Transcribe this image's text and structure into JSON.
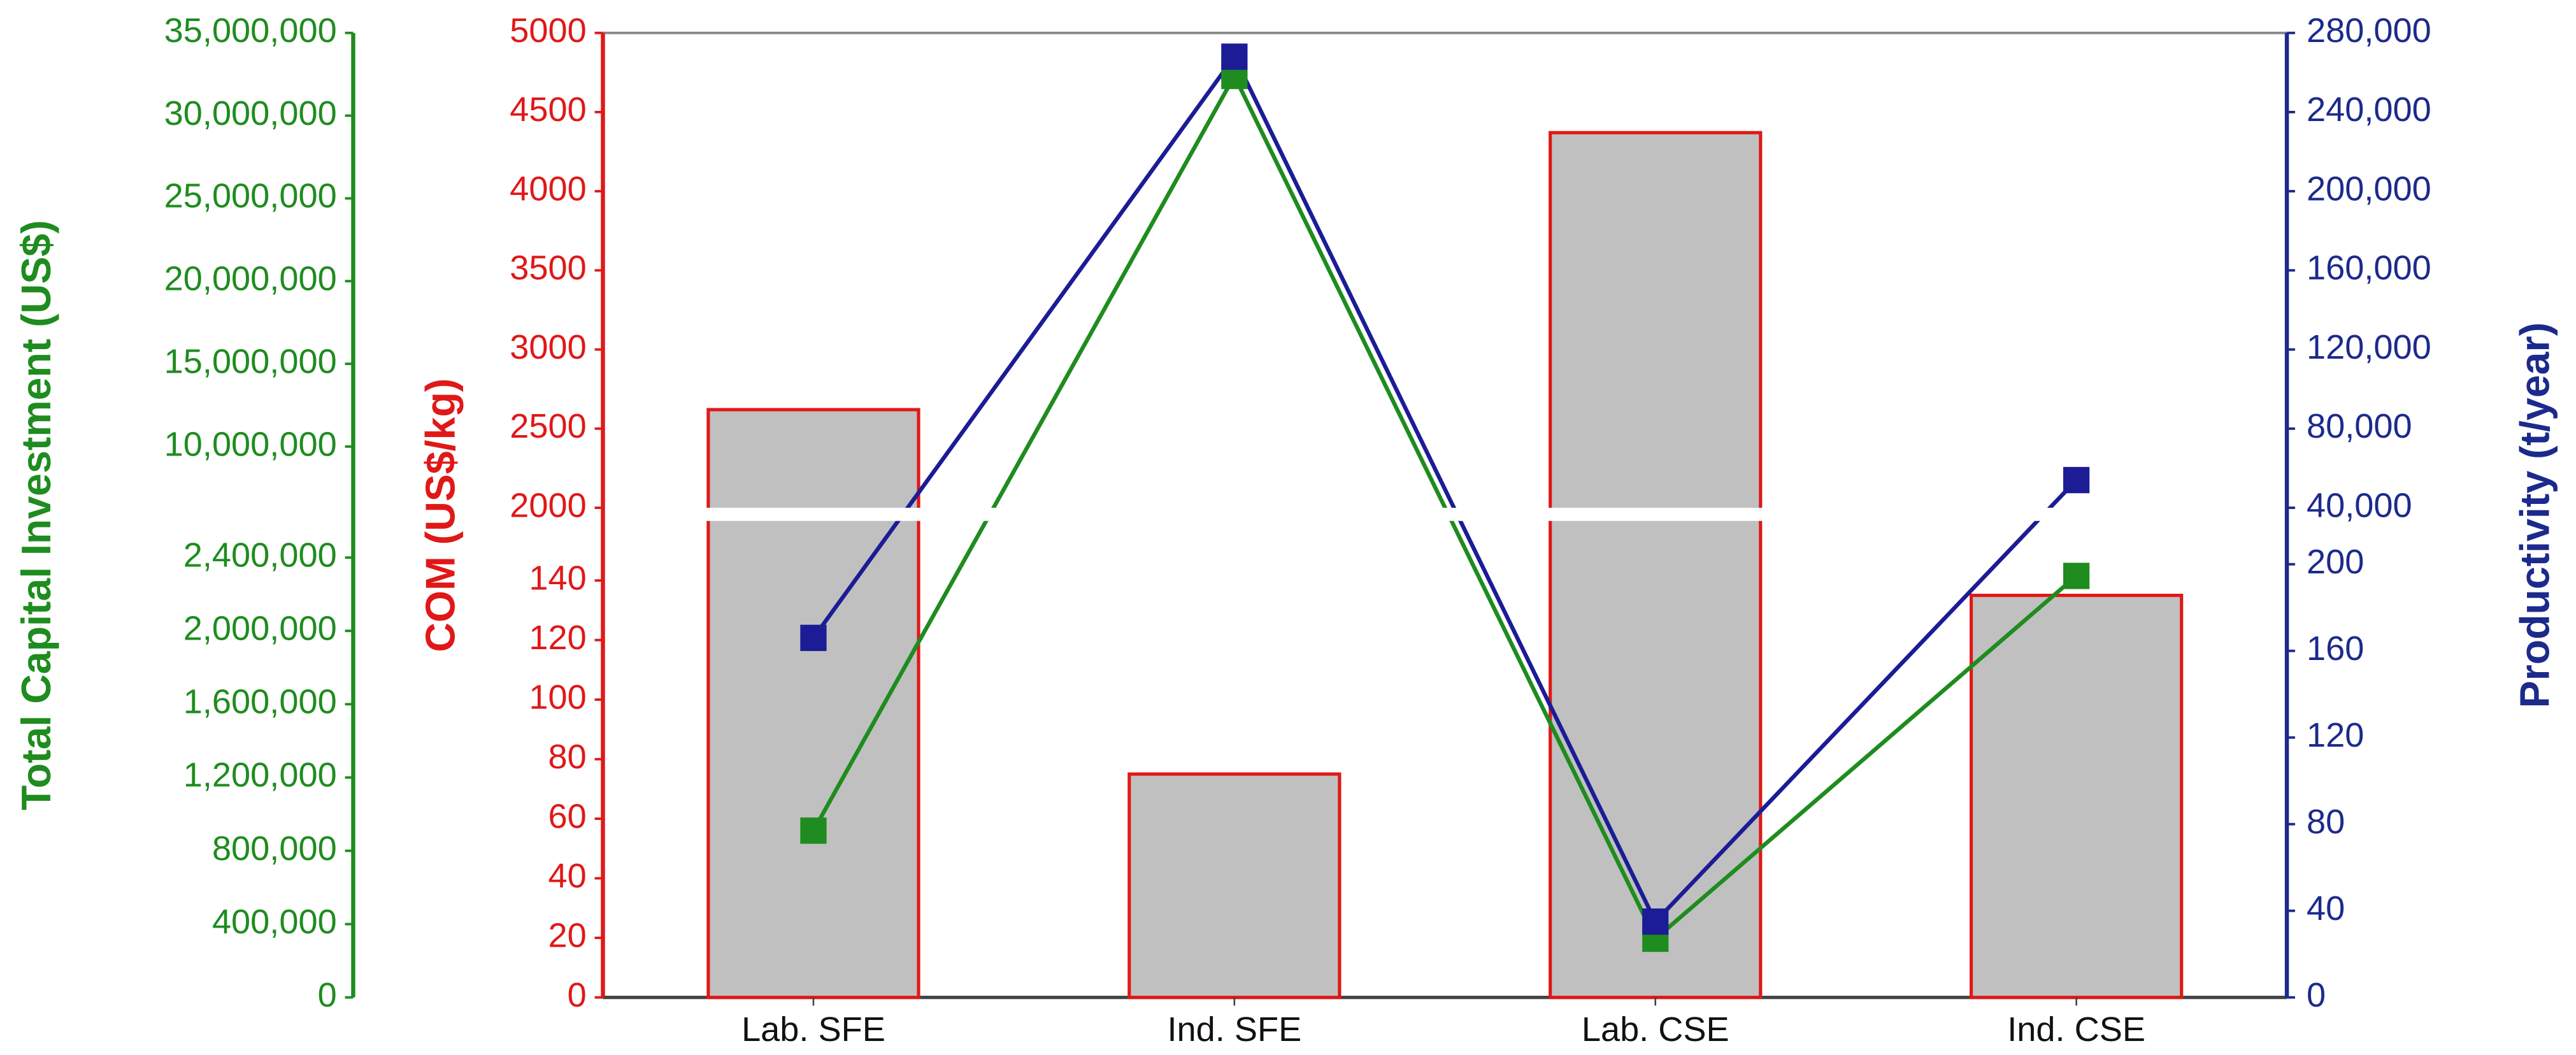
{
  "chart_data": {
    "type": "bar-line",
    "categories": [
      "Lab. SFE",
      "Ind. SFE",
      "Lab. CSE",
      "Ind. CSE"
    ],
    "y_axes": [
      {
        "label": "Total Capital Investment (US$)",
        "color": "#1e8c1e",
        "side": "far-left",
        "segments": [
          {
            "ylim": [
              0,
              2600000
            ],
            "yticks": [
              {
                "value": 0,
                "label": "0"
              },
              {
                "value": 400000,
                "label": "400,000"
              },
              {
                "value": 800000,
                "label": "800,000"
              },
              {
                "value": 1200000,
                "label": "1,200,000"
              },
              {
                "value": 1600000,
                "label": "1,600,000"
              },
              {
                "value": 2000000,
                "label": "2,000,000"
              },
              {
                "value": 2400000,
                "label": "2,400,000"
              }
            ]
          },
          {
            "ylim": [
              6300000,
              35000000
            ],
            "yticks": [
              {
                "value": 10000000,
                "label": "10,000,000"
              },
              {
                "value": 15000000,
                "label": "15,000,000"
              },
              {
                "value": 20000000,
                "label": "20,000,000"
              },
              {
                "value": 25000000,
                "label": "25,000,000"
              },
              {
                "value": 30000000,
                "label": "30,000,000"
              },
              {
                "value": 35000000,
                "label": "35,000,000"
              }
            ]
          }
        ]
      },
      {
        "label": "COM (US$/kg)",
        "color": "#e01818",
        "side": "left",
        "segments": [
          {
            "ylim": [
              0,
              160
            ],
            "yticks": [
              0,
              20,
              40,
              60,
              80,
              100,
              120,
              140
            ]
          },
          {
            "ylim": [
              2000,
              5000
            ],
            "yticks": [
              2000,
              2500,
              3000,
              3500,
              4000,
              4500,
              5000
            ]
          }
        ]
      },
      {
        "label": "Productivity (t/year)",
        "color": "#1c2a8c",
        "side": "right",
        "segments": [
          {
            "ylim": [
              0,
              220
            ],
            "yticks": [
              0,
              40,
              80,
              120,
              160,
              200
            ]
          },
          {
            "ylim": [
              40000,
              280000
            ],
            "yticks": [
              {
                "value": 40000,
                "label": "40,000"
              },
              {
                "value": 80000,
                "label": "80,000"
              },
              {
                "value": 120000,
                "label": "120,000"
              },
              {
                "value": 160000,
                "label": "160,000"
              },
              {
                "value": 200000,
                "label": "200,000"
              },
              {
                "value": 240000,
                "label": "240,000"
              },
              {
                "value": 280000,
                "label": "280,000"
              }
            ]
          }
        ]
      }
    ],
    "series": [
      {
        "type": "bar",
        "axis": 1,
        "color": "#c0c0c0",
        "edge_color": "#e01818",
        "values": [
          2620,
          75,
          4370,
          135
        ]
      },
      {
        "type": "line",
        "axis": 0,
        "color": "#1e8c1e",
        "values": [
          910000,
          32400000,
          320000,
          2300000
        ]
      },
      {
        "type": "line",
        "axis": 2,
        "color": "#1c1c96",
        "values": [
          166,
          268000,
          35,
          54000
        ]
      }
    ]
  }
}
